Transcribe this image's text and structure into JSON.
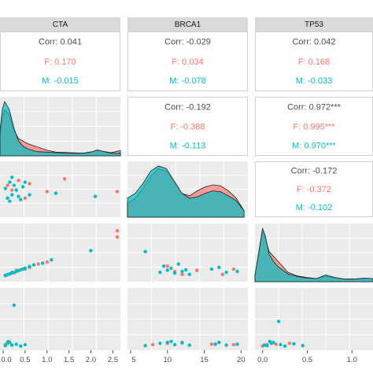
{
  "chart_data": {
    "type": "scatter",
    "variables": [
      "CTA",
      "BRCA1",
      "TP53"
    ],
    "groups": [
      {
        "name": "F",
        "color": "#F8766D"
      },
      {
        "name": "M",
        "color": "#00BFC4"
      }
    ],
    "overall_color": "#595959",
    "correlations": [
      {
        "row": "CTA",
        "col": "BRCA1",
        "corr": "Corr: 0.041",
        "f": "F: 0.170",
        "m": "M: -0.015"
      },
      {
        "row": "CTA",
        "col": "TP53",
        "corr": "Corr: -0.029",
        "f": "F: 0.034",
        "m": "M: -0.078"
      },
      {
        "row": "CTA",
        "col": "extra",
        "corr": "Corr: 0.042",
        "f": "F: 0.168",
        "m": "M: -0.033"
      },
      {
        "row": "BRCA1",
        "col": "TP53",
        "corr": "Corr: -0.192",
        "f": "F: -0.388",
        "m": "M: -0.113"
      },
      {
        "row": "BRCA1",
        "col": "extra",
        "corr": "Corr: 0.972***",
        "f": "F: 0.995***",
        "m": "M: 0.970***"
      },
      {
        "row": "TP53",
        "col": "extra",
        "corr": "Corr: -0.172",
        "f": "F: -0.372",
        "m": "M: -0.102"
      }
    ],
    "x_ticks": [
      {
        "var": "CTA",
        "labels": [
          "0.0",
          "0.5",
          "1.0",
          "1.5",
          "2.0",
          "2.5"
        ],
        "values": [
          0,
          0.5,
          1,
          1.5,
          2,
          2.5
        ],
        "range": [
          0,
          2.6
        ]
      },
      {
        "var": "BRCA1",
        "labels": [
          "5",
          "10",
          "15",
          "20"
        ],
        "values": [
          5,
          10,
          15,
          20
        ],
        "range": [
          5,
          20.5
        ]
      },
      {
        "var": "TP53",
        "labels": [
          "0.0",
          "0.5",
          "1.0"
        ],
        "values": [
          0,
          0.5,
          1
        ],
        "range": [
          -0.05,
          1.2
        ]
      }
    ],
    "ranges": {
      "CTA": [
        0,
        2.6
      ],
      "BRCA1": [
        5,
        20.5
      ],
      "TP53": [
        -0.05,
        1.2
      ],
      "row5": [
        0,
        1.2
      ]
    },
    "densities": {
      "CTA": {
        "x": [
          0,
          0.05,
          0.1,
          0.2,
          0.3,
          0.4,
          0.5,
          0.6,
          0.8,
          1.0,
          1.2,
          1.5,
          1.8,
          2.0,
          2.1,
          2.2,
          2.4,
          2.6
        ],
        "F": [
          0.35,
          0.7,
          0.85,
          0.75,
          0.45,
          0.3,
          0.25,
          0.2,
          0.14,
          0.08,
          0.04,
          0.03,
          0.02,
          0.05,
          0.08,
          0.06,
          0.03,
          0.07
        ],
        "M": [
          0.45,
          0.85,
          1.0,
          0.85,
          0.5,
          0.25,
          0.15,
          0.1,
          0.05,
          0.04,
          0.03,
          0.02,
          0.02,
          0.05,
          0.08,
          0.06,
          0.02,
          0.02
        ]
      },
      "BRCA1": {
        "x": [
          5,
          6,
          7,
          8,
          9,
          10,
          11,
          12,
          13,
          14,
          15,
          16,
          17,
          18,
          19,
          20
        ],
        "F": [
          0.25,
          0.35,
          0.55,
          0.8,
          0.95,
          0.9,
          0.7,
          0.45,
          0.4,
          0.5,
          0.58,
          0.62,
          0.6,
          0.5,
          0.35,
          0.1
        ],
        "M": [
          0.35,
          0.45,
          0.65,
          0.9,
          1.0,
          0.95,
          0.7,
          0.45,
          0.35,
          0.38,
          0.45,
          0.5,
          0.48,
          0.4,
          0.3,
          0.1
        ]
      },
      "TP53": {
        "x": [
          -0.05,
          0.0,
          0.03,
          0.06,
          0.1,
          0.15,
          0.2,
          0.3,
          0.4,
          0.5,
          0.6,
          0.7,
          0.8,
          0.9,
          1.0,
          1.1,
          1.2
        ],
        "F": [
          0.1,
          0.6,
          0.95,
          0.8,
          0.55,
          0.45,
          0.35,
          0.15,
          0.08,
          0.05,
          0.03,
          0.08,
          0.04,
          0.02,
          0.02,
          0.03,
          0.03
        ],
        "M": [
          0.1,
          0.65,
          1.0,
          0.85,
          0.5,
          0.35,
          0.25,
          0.12,
          0.07,
          0.04,
          0.03,
          0.1,
          0.05,
          0.02,
          0.02,
          0.04,
          0.03
        ]
      }
    },
    "scatter": {
      "CTA_BRCA1": {
        "F": [
          [
            0.1,
            14
          ],
          [
            0.2,
            12.5
          ],
          [
            0.35,
            15.5
          ],
          [
            0.5,
            10
          ],
          [
            0.6,
            14.5
          ],
          [
            1.0,
            12
          ],
          [
            1.4,
            16
          ],
          [
            2.6,
            12
          ]
        ],
        "M": [
          [
            0.05,
            13
          ],
          [
            0.1,
            10
          ],
          [
            0.15,
            15
          ],
          [
            0.2,
            11
          ],
          [
            0.25,
            14
          ],
          [
            0.3,
            12.5
          ],
          [
            0.4,
            9.5
          ],
          [
            0.5,
            15
          ],
          [
            0.6,
            11
          ],
          [
            0.2,
            16.5
          ],
          [
            0.15,
            9
          ],
          [
            0.45,
            13.5
          ],
          [
            1.2,
            11.5
          ],
          [
            2.1,
            10.5
          ],
          [
            0.35,
            10.5
          ]
        ]
      },
      "CTA_TP53": {
        "F": [
          [
            0.05,
            0.02
          ],
          [
            0.1,
            0.05
          ],
          [
            0.2,
            0.08
          ],
          [
            0.3,
            0.15
          ],
          [
            0.5,
            0.18
          ],
          [
            0.6,
            0.22
          ],
          [
            0.8,
            0.3
          ],
          [
            1.0,
            0.35
          ],
          [
            2.6,
            1.1
          ],
          [
            2.6,
            0.95
          ]
        ],
        "M": [
          [
            0.05,
            0.03
          ],
          [
            0.1,
            0.04
          ],
          [
            0.15,
            0.06
          ],
          [
            0.2,
            0.1
          ],
          [
            0.3,
            0.12
          ],
          [
            0.35,
            0.14
          ],
          [
            0.4,
            0.16
          ],
          [
            0.5,
            0.2
          ],
          [
            0.6,
            0.24
          ],
          [
            0.7,
            0.28
          ],
          [
            0.9,
            0.32
          ],
          [
            1.1,
            0.4
          ],
          [
            2.0,
            0.62
          ],
          [
            0.25,
            0.09
          ],
          [
            0.45,
            0.18
          ]
        ]
      },
      "BRCA1_TP53": {
        "F": [
          [
            10,
            0.25
          ],
          [
            12,
            0.05
          ],
          [
            14,
            0.15
          ],
          [
            17.5,
            0.05
          ],
          [
            19,
            0.18
          ],
          [
            11,
            0.12
          ]
        ],
        "M": [
          [
            7,
            0.6
          ],
          [
            9,
            0.1
          ],
          [
            10,
            0.15
          ],
          [
            10.5,
            0.2
          ],
          [
            11,
            0.08
          ],
          [
            11.5,
            0.3
          ],
          [
            12,
            0.12
          ],
          [
            13,
            0.05
          ],
          [
            16,
            0.18
          ],
          [
            17,
            0.22
          ],
          [
            18,
            0.1
          ],
          [
            19.5,
            0.12
          ],
          [
            9.5,
            0.25
          ],
          [
            12.5,
            0.16
          ]
        ]
      },
      "CTA_row5": {
        "F": [
          [
            0.05,
            0.05
          ],
          [
            0.1,
            0.1
          ],
          [
            0.2,
            0.04
          ]
        ],
        "M": [
          [
            0.05,
            0.03
          ],
          [
            0.1,
            0.08
          ],
          [
            0.15,
            0.1
          ],
          [
            0.2,
            0.04
          ],
          [
            0.3,
            0.06
          ],
          [
            0.4,
            0.02
          ],
          [
            0.25,
            0.9
          ],
          [
            0.12,
            0.12
          ],
          [
            0.5,
            0.05
          ]
        ]
      },
      "BRCA1_row5": {
        "F": [
          [
            8,
            0.05
          ],
          [
            10,
            0.08
          ],
          [
            12,
            0.1
          ],
          [
            16,
            0.06
          ],
          [
            19,
            0.05
          ]
        ],
        "M": [
          [
            7,
            0.03
          ],
          [
            9,
            0.08
          ],
          [
            10,
            0.1
          ],
          [
            11,
            0.05
          ],
          [
            12,
            0.09
          ],
          [
            13,
            0.04
          ],
          [
            16.5,
            0.06
          ],
          [
            17,
            0.1
          ],
          [
            18,
            0.04
          ],
          [
            19.5,
            0.06
          ],
          [
            10.5,
            0.12
          ]
        ]
      },
      "TP53_row5": {
        "F": [
          [
            0.0,
            0.02
          ],
          [
            0.05,
            0.05
          ],
          [
            0.15,
            0.06
          ],
          [
            0.3,
            0.08
          ]
        ],
        "M": [
          [
            0.02,
            0.04
          ],
          [
            0.05,
            0.03
          ],
          [
            0.1,
            0.08
          ],
          [
            0.12,
            0.1
          ],
          [
            0.2,
            0.05
          ],
          [
            0.25,
            0.02
          ],
          [
            0.35,
            0.07
          ],
          [
            0.18,
            0.55
          ],
          [
            0.08,
            0.12
          ],
          [
            0.45,
            0.03
          ]
        ]
      }
    }
  }
}
